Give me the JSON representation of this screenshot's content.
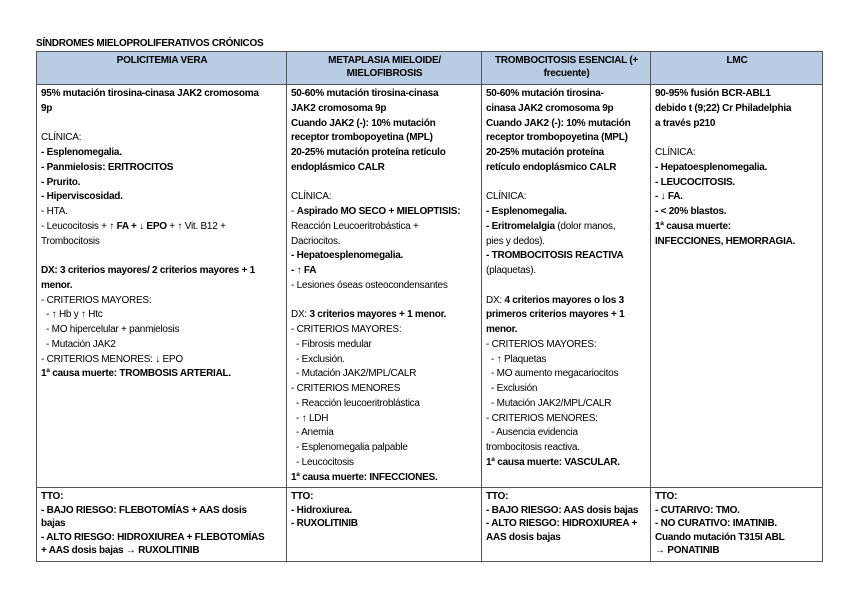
{
  "title": "SÍNDROMES MIELOPROLIFERATIVOS CRÓNICOS",
  "headers": [
    [
      "POLICITEMIA VERA"
    ],
    [
      "METAPLASIA MIELOIDE/",
      "MIELOFIBROSIS"
    ],
    [
      "TROMBOCITOSIS ESENCIAL (+",
      "frecuente)"
    ],
    [
      "LMC"
    ]
  ],
  "content": [
    [
      [
        {
          "t": "95% mutación tirosina-cinasa JAK2 cromosoma",
          "b": true
        }
      ],
      [
        {
          "t": "9p",
          "b": true
        }
      ],
      [],
      [
        {
          "t": "CLÍNICA:"
        }
      ],
      [
        {
          "t": "- Esplenomegalia.",
          "b": true
        }
      ],
      [
        {
          "t": "- Panmielosis: ERITROCITOS",
          "b": true
        }
      ],
      [
        {
          "t": "- Prurito.",
          "b": true
        }
      ],
      [
        {
          "t": "- Hiperviscosidad.",
          "b": true
        }
      ],
      [
        {
          "t": "- HTA."
        }
      ],
      [
        {
          "t": "- Leucocitosis + "
        },
        {
          "t": "↑ FA + ↓ EPO",
          "b": true
        },
        {
          "t": " + ↑ Vit. B12 +"
        }
      ],
      [
        {
          "t": "Trombocitosis"
        }
      ],
      [],
      [
        {
          "t": "DX: 3 criterios mayores/ 2 criterios mayores + 1",
          "b": true
        }
      ],
      [
        {
          "t": "menor.",
          "b": true
        }
      ],
      [
        {
          "t": "- CRITERIOS MAYORES:"
        }
      ],
      [
        {
          "t": "  - ↑ Hb y ↑ Htc"
        }
      ],
      [
        {
          "t": "  - MO hipercelular + panmielosis"
        }
      ],
      [
        {
          "t": "  - Mutación JAK2"
        }
      ],
      [
        {
          "t": "- CRITERIOS MENORES: ↓ EPO"
        }
      ],
      [
        {
          "t": "1ª causa muerte: TROMBOSIS ARTERIAL.",
          "b": true
        }
      ]
    ],
    [
      [
        {
          "t": "50-60% mutación tirosina-cinasa",
          "b": true
        }
      ],
      [
        {
          "t": "JAK2 cromosoma 9p",
          "b": true
        }
      ],
      [
        {
          "t": "Cuando JAK2 (-): 10% mutación",
          "b": true
        }
      ],
      [
        {
          "t": "receptor trombopoyetina (MPL)",
          "b": true
        }
      ],
      [
        {
          "t": "20-25% mutación proteína retículo",
          "b": true
        }
      ],
      [
        {
          "t": "endoplásmico CALR",
          "b": true
        }
      ],
      [],
      [
        {
          "t": "CLÍNICA:"
        }
      ],
      [
        {
          "t": "- "
        },
        {
          "t": "Aspirado MO SECO + MIELOPTISIS:",
          "b": true
        }
      ],
      [
        {
          "t": "Reacción Leucoeritrobástica +"
        }
      ],
      [
        {
          "t": "Dacriocitos."
        }
      ],
      [
        {
          "t": "- Hepatoesplenomegalia.",
          "b": true
        }
      ],
      [
        {
          "t": "- ↑ FA",
          "b": true
        }
      ],
      [
        {
          "t": "- Lesiones óseas osteocondensantes"
        }
      ],
      [],
      [
        {
          "t": "DX: "
        },
        {
          "t": "3 criterios mayores + 1 menor.",
          "b": true
        }
      ],
      [
        {
          "t": "- CRITERIOS MAYORES:"
        }
      ],
      [
        {
          "t": "  - Fibrosis medular"
        }
      ],
      [
        {
          "t": "  - Exclusión."
        }
      ],
      [
        {
          "t": "  - Mutación JAK2/MPL/CALR"
        }
      ],
      [
        {
          "t": "- CRITERIOS MENORES"
        }
      ],
      [
        {
          "t": "  - Reacción leucoeritroblástica"
        }
      ],
      [
        {
          "t": "  - ↑ LDH"
        }
      ],
      [
        {
          "t": "  - Anemia"
        }
      ],
      [
        {
          "t": "  - Esplenomegalia palpable"
        }
      ],
      [
        {
          "t": "  - Leucocitosis"
        }
      ],
      [
        {
          "t": "1ª causa muerte: INFECCIONES.",
          "b": true
        }
      ]
    ],
    [
      [
        {
          "t": "50-60% mutación tirosina-",
          "b": true
        }
      ],
      [
        {
          "t": "cinasa JAK2 cromosoma 9p",
          "b": true
        }
      ],
      [
        {
          "t": "Cuando JAK2 (-): 10% mutación",
          "b": true
        }
      ],
      [
        {
          "t": "receptor trombopoyetina (MPL)",
          "b": true
        }
      ],
      [
        {
          "t": "20-25% mutación proteína",
          "b": true
        }
      ],
      [
        {
          "t": "retículo endoplásmico CALR",
          "b": true
        }
      ],
      [],
      [
        {
          "t": "CLÍNICA:"
        }
      ],
      [
        {
          "t": "- Esplenomegalia.",
          "b": true
        }
      ],
      [
        {
          "t": "- Eritromelalgia",
          "b": true
        },
        {
          "t": " (dolor manos,"
        }
      ],
      [
        {
          "t": "pies y dedos)."
        }
      ],
      [
        {
          "t": "- TROMBOCITOSIS REACTIVA",
          "b": true
        }
      ],
      [
        {
          "t": "(plaquetas)."
        }
      ],
      [],
      [
        {
          "t": "DX: "
        },
        {
          "t": "4 criterios mayores o los 3",
          "b": true
        }
      ],
      [
        {
          "t": "primeros criterios mayores + 1",
          "b": true
        }
      ],
      [
        {
          "t": "menor.",
          "b": true
        }
      ],
      [
        {
          "t": "- CRITERIOS MAYORES:"
        }
      ],
      [
        {
          "t": "  - ↑ Plaquetas"
        }
      ],
      [
        {
          "t": "  - MO aumento megacariocitos"
        }
      ],
      [
        {
          "t": "  - Exclusión"
        }
      ],
      [
        {
          "t": "  - Mutación JAK2/MPL/CALR"
        }
      ],
      [
        {
          "t": "- CRITERIOS MENORES:"
        }
      ],
      [
        {
          "t": "  - Ausencia evidencia"
        }
      ],
      [
        {
          "t": "trombocitosis reactiva."
        }
      ],
      [
        {
          "t": "1ª causa muerte: VASCULAR.",
          "b": true
        }
      ]
    ],
    [
      [
        {
          "t": "90-95% fusión BCR-ABL1",
          "b": true
        }
      ],
      [
        {
          "t": "debido t (9;22) Cr Philadelphia",
          "b": true
        }
      ],
      [
        {
          "t": "a través p210",
          "b": true
        }
      ],
      [],
      [
        {
          "t": "CLÍNICA:"
        }
      ],
      [
        {
          "t": "- Hepatoesplenomegalia.",
          "b": true
        }
      ],
      [
        {
          "t": "- LEUCOCITOSIS.",
          "b": true
        }
      ],
      [
        {
          "t": "- ↓ FA.",
          "b": true
        }
      ],
      [
        {
          "t": "- < 20% blastos.",
          "b": true
        }
      ],
      [
        {
          "t": "1ª causa muerte:",
          "b": true
        }
      ],
      [
        {
          "t": "INFECCIONES, HEMORRAGIA.",
          "b": true
        }
      ]
    ]
  ],
  "treatment": [
    [
      [
        {
          "t": "TTO:",
          "b": true
        }
      ],
      [
        {
          "t": "- BAJO RIESGO: FLEBOTOMÍAS + AAS dosis",
          "b": true
        }
      ],
      [
        {
          "t": "bajas",
          "b": true
        }
      ],
      [
        {
          "t": "- ALTO RIESGO: HIDROXIUREA + FLEBOTOMÍAS",
          "b": true
        }
      ],
      [
        {
          "t": "+ AAS dosis bajas → RUXOLITINIB",
          "b": true
        }
      ]
    ],
    [
      [
        {
          "t": "TTO:",
          "b": true
        }
      ],
      [
        {
          "t": "- Hidroxiurea.",
          "b": true
        }
      ],
      [
        {
          "t": "- RUXOLITINIB",
          "b": true
        }
      ]
    ],
    [
      [
        {
          "t": "TTO:",
          "b": true
        }
      ],
      [
        {
          "t": "- BAJO RIESGO: AAS dosis bajas",
          "b": true
        }
      ],
      [
        {
          "t": "- ALTO RIESGO: HIDROXIUREA +",
          "b": true
        }
      ],
      [
        {
          "t": "AAS dosis bajas",
          "b": true
        }
      ]
    ],
    [
      [
        {
          "t": "TTO:",
          "b": true
        }
      ],
      [
        {
          "t": "- CUTARIVO: TMO.",
          "b": true
        }
      ],
      [
        {
          "t": "- NO CURATIVO: IMATINIB.",
          "b": true
        }
      ],
      [
        {
          "t": "Cuando mutación T315I ABL",
          "b": true
        }
      ],
      [
        {
          "t": "→ PONATINIB",
          "b": true
        }
      ]
    ]
  ],
  "colors": {
    "header_bg": "#b8cce4",
    "border": "#555555"
  }
}
